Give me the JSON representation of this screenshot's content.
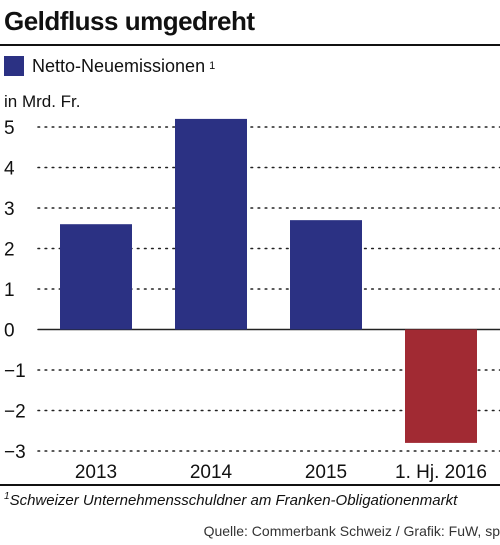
{
  "header": {
    "title": "Geldfluss umgedreht"
  },
  "legend": {
    "label": "Netto-Neuemissionen",
    "sup": "1"
  },
  "footnote": {
    "sup": "1",
    "text": "Schweizer Unternehmensschuldner am Franken-Obligationenmarkt"
  },
  "source": "Quelle: Commerbank Schweiz / Grafik: FuW, sp",
  "colors": {
    "positive": "#2b3183",
    "negative": "#a12a33"
  },
  "chart_data": {
    "type": "bar",
    "title": "Geldfluss umgedreht",
    "ylabel": "in Mrd. Fr.",
    "categories": [
      "2013",
      "2014",
      "2015",
      "1. Hj. 2016"
    ],
    "series": [
      {
        "name": "Netto-Neuemissionen",
        "values": [
          2.6,
          5.2,
          2.7,
          -2.8
        ]
      }
    ],
    "ylim": [
      -3,
      5
    ],
    "yticks": [
      5,
      4,
      3,
      2,
      1,
      0,
      -1,
      -2,
      -3
    ],
    "ytick_labels": [
      "5",
      "4",
      "3",
      "2",
      "1",
      "0",
      "−1",
      "−2",
      "−3"
    ],
    "grid": true
  }
}
